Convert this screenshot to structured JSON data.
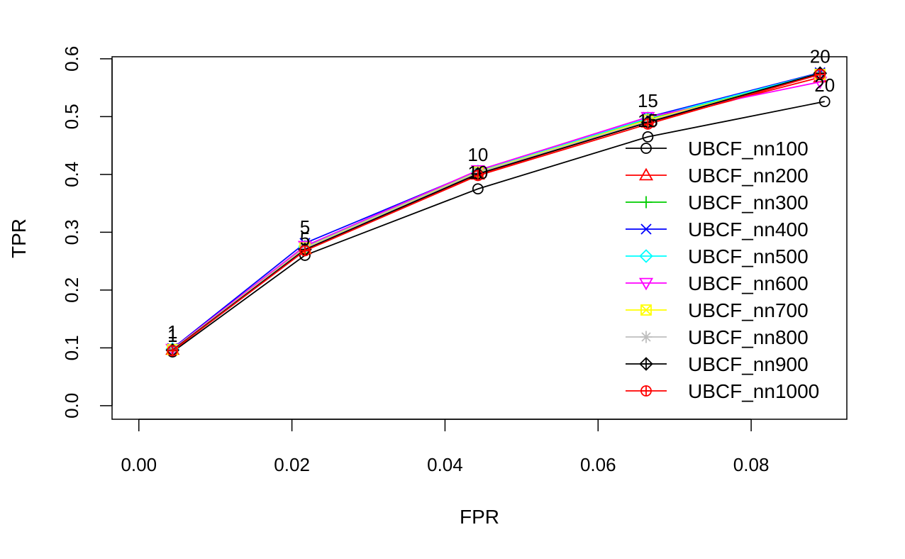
{
  "chart_data": {
    "type": "line",
    "title": "",
    "xlabel": "FPR",
    "ylabel": "TPR",
    "xlim": [
      -0.0035,
      0.0925
    ],
    "ylim": [
      -0.0235,
      0.6035
    ],
    "xticks": [
      "0.00",
      "0.02",
      "0.04",
      "0.06",
      "0.08"
    ],
    "yticks": [
      "0.0",
      "0.1",
      "0.2",
      "0.3",
      "0.4",
      "0.5",
      "0.6"
    ],
    "point_labels": [
      "1",
      "5",
      "10",
      "15",
      "20"
    ],
    "grid": false,
    "legend_position": "right",
    "series": [
      {
        "name": "UBCF_nn100",
        "color": "#000000",
        "marker": "circle",
        "x": [
          0.0044,
          0.0217,
          0.0443,
          0.0665,
          0.0896
        ],
        "y": [
          0.093,
          0.26,
          0.375,
          0.465,
          0.526
        ]
      },
      {
        "name": "UBCF_nn200",
        "color": "#FF0000",
        "marker": "triangle-up",
        "x": [
          0.0044,
          0.0217,
          0.0443,
          0.0665,
          0.089
        ],
        "y": [
          0.097,
          0.271,
          0.4,
          0.49,
          0.568
        ]
      },
      {
        "name": "UBCF_nn300",
        "color": "#00CD00",
        "marker": "plus",
        "x": [
          0.0044,
          0.0217,
          0.0443,
          0.0665,
          0.089
        ],
        "y": [
          0.098,
          0.276,
          0.405,
          0.496,
          0.575
        ]
      },
      {
        "name": "UBCF_nn400",
        "color": "#0000FF",
        "marker": "cross",
        "x": [
          0.0044,
          0.0217,
          0.0443,
          0.0665,
          0.089
        ],
        "y": [
          0.099,
          0.281,
          0.406,
          0.499,
          0.576
        ]
      },
      {
        "name": "UBCF_nn500",
        "color": "#00FFFF",
        "marker": "diamond",
        "x": [
          0.0044,
          0.0217,
          0.0443,
          0.0665,
          0.089
        ],
        "y": [
          0.098,
          0.274,
          0.405,
          0.497,
          0.575
        ]
      },
      {
        "name": "UBCF_nn600",
        "color": "#FF00FF",
        "marker": "triangle-down",
        "x": [
          0.0044,
          0.0217,
          0.0443,
          0.0665,
          0.089
        ],
        "y": [
          0.098,
          0.276,
          0.407,
          0.499,
          0.56
        ]
      },
      {
        "name": "UBCF_nn700",
        "color": "#FFFF00",
        "marker": "square-x",
        "x": [
          0.0044,
          0.0217,
          0.0443,
          0.0665,
          0.089
        ],
        "y": [
          0.097,
          0.273,
          0.404,
          0.494,
          0.573
        ]
      },
      {
        "name": "UBCF_nn800",
        "color": "#BEBEBE",
        "marker": "asterisk",
        "x": [
          0.0044,
          0.0217,
          0.0443,
          0.0665,
          0.089
        ],
        "y": [
          0.097,
          0.272,
          0.403,
          0.492,
          0.573
        ]
      },
      {
        "name": "UBCF_nn900",
        "color": "#000000",
        "marker": "diamond-plus",
        "x": [
          0.0044,
          0.0217,
          0.0443,
          0.0665,
          0.089
        ],
        "y": [
          0.096,
          0.27,
          0.401,
          0.49,
          0.575
        ]
      },
      {
        "name": "UBCF_nn1000",
        "color": "#FF0000",
        "marker": "circle-plus",
        "x": [
          0.0044,
          0.0217,
          0.0443,
          0.0665,
          0.089
        ],
        "y": [
          0.095,
          0.268,
          0.398,
          0.487,
          0.573
        ]
      }
    ]
  }
}
